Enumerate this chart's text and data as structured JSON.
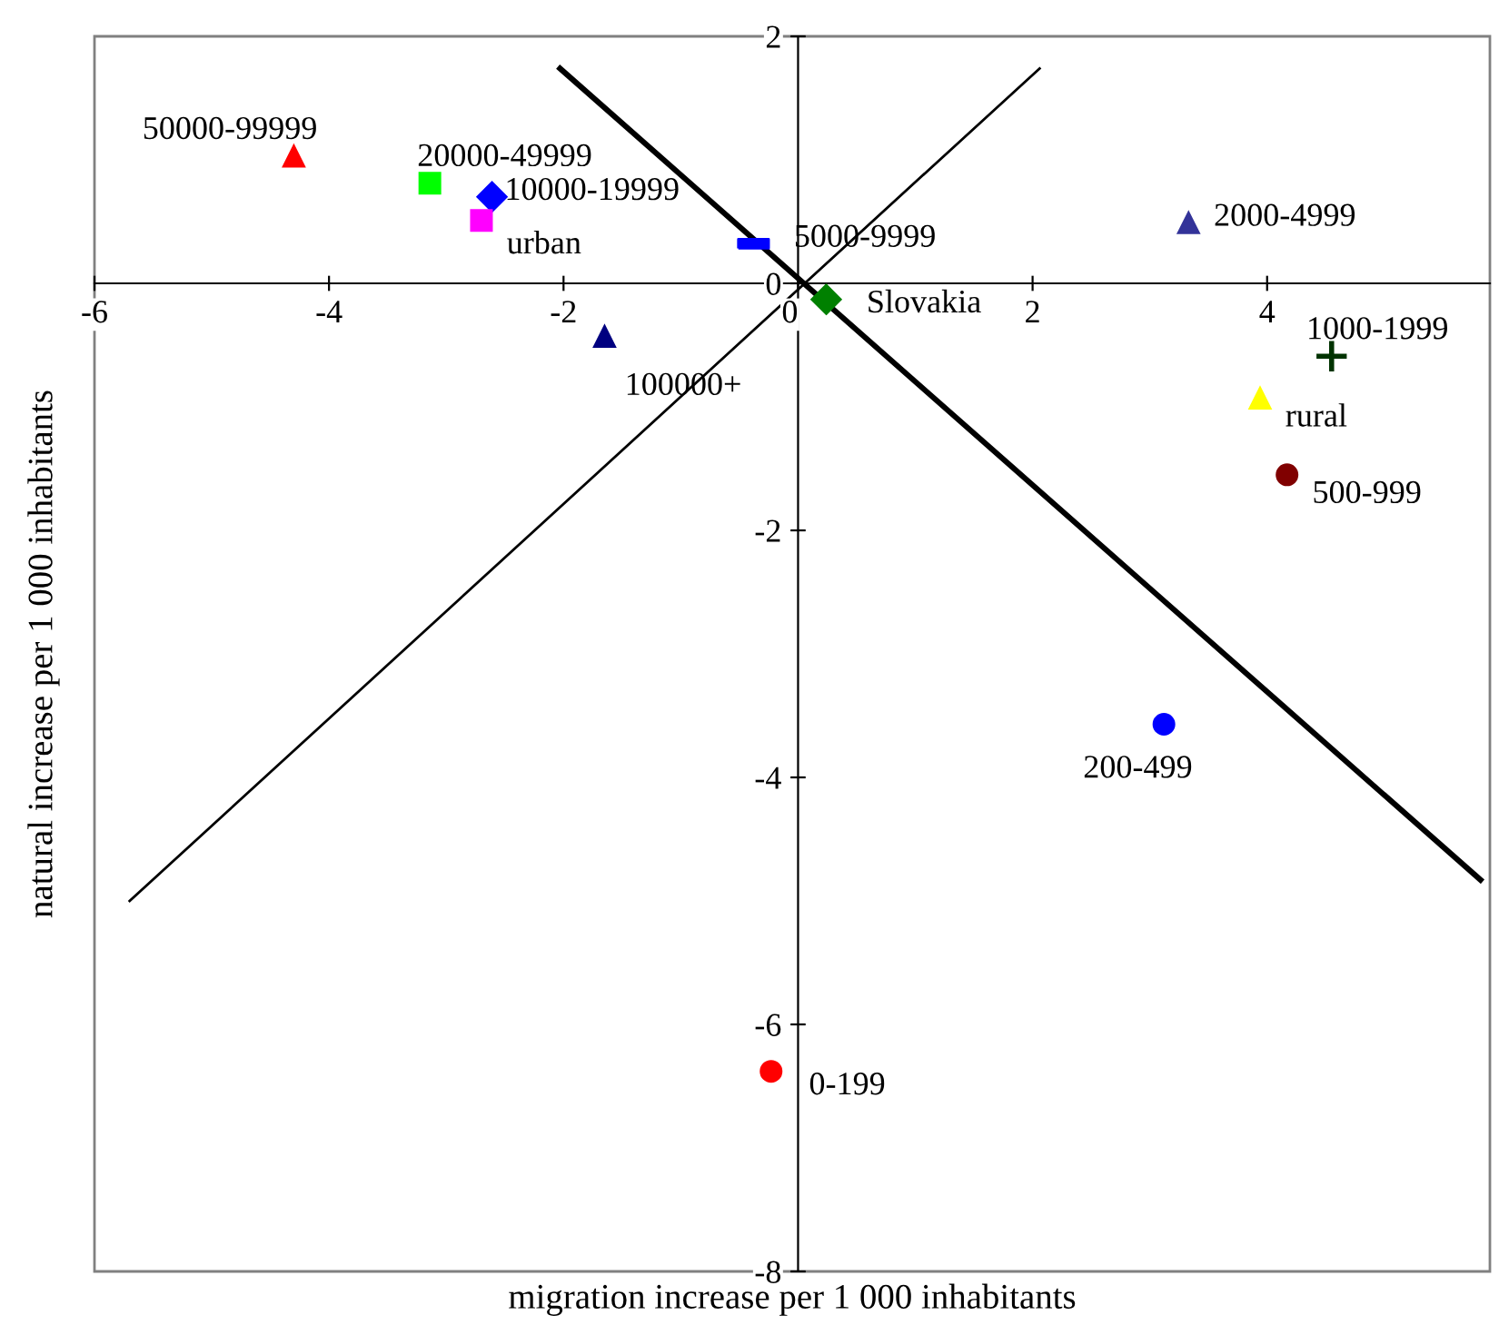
{
  "chart_data": {
    "type": "scatter",
    "xlabel": "migration increase per 1 000 inhabitants",
    "ylabel": "natural increase per 1 000 inhabitants",
    "xlim": [
      -6,
      5.9
    ],
    "ylim": [
      -8,
      2
    ],
    "xticks": [
      -6,
      -4,
      -2,
      0,
      2,
      4
    ],
    "yticks": [
      -8,
      -6,
      -4,
      -2,
      0,
      2
    ],
    "grid": false,
    "legend": false,
    "series": [
      {
        "name": "50000-99999",
        "color": "#ff0000",
        "marker": "triangle",
        "x": [
          -4.3
        ],
        "values": [
          1.03
        ]
      },
      {
        "name": "20000-49999",
        "color": "#00ff00",
        "marker": "square",
        "x": [
          -3.14
        ],
        "values": [
          0.81
        ]
      },
      {
        "name": "10000-19999",
        "color": "#0000ff",
        "marker": "diamond",
        "x": [
          -2.61
        ],
        "values": [
          0.7
        ]
      },
      {
        "name": "urban",
        "color": "#ff00ff",
        "marker": "square",
        "x": [
          -2.7
        ],
        "values": [
          0.51
        ]
      },
      {
        "name": "5000-9999",
        "color": "#0000ff",
        "x": [
          -0.38
        ],
        "values": [
          0.32
        ]
      },
      {
        "name": "2000-4999",
        "color": "#333399",
        "marker": "triangle",
        "x": [
          3.33
        ],
        "values": [
          0.49
        ]
      },
      {
        "name": "100000+",
        "color": "#000080",
        "marker": "triangle",
        "x": [
          -1.65
        ],
        "values": [
          -0.43
        ]
      },
      {
        "name": "Slovakia",
        "color": "#008000",
        "marker": "diamond",
        "x": [
          0.24
        ],
        "values": [
          -0.13
        ]
      },
      {
        "name": "1000-1999",
        "color": "#003300",
        "marker": "cross",
        "x": [
          4.55
        ],
        "values": [
          -0.59
        ]
      },
      {
        "name": "rural",
        "color": "#ffff00",
        "marker": "triangle",
        "x": [
          3.94
        ],
        "values": [
          -0.93
        ]
      },
      {
        "name": "500-999",
        "color": "#800000",
        "marker": "circle",
        "x": [
          4.17
        ],
        "values": [
          -1.55
        ]
      },
      {
        "name": "200-499",
        "color": "#0000ff",
        "marker": "circle",
        "x": [
          3.12
        ],
        "values": [
          -3.57
        ]
      },
      {
        "name": "0-199",
        "color": "#ff0000",
        "marker": "circle",
        "x": [
          -0.23
        ],
        "values": [
          -6.38
        ]
      },
      {
        "type": "line",
        "color": "#000000",
        "marker": "none",
        "line_style": "solid",
        "x": [
          -5.7,
          2.06
        ],
        "values": [
          -5.0,
          1.74
        ]
      },
      {
        "type": "line",
        "color": "#000000",
        "marker": "none",
        "line_style": "solid",
        "x": [
          -2.03,
          5.82
        ],
        "values": [
          1.74,
          -4.83
        ]
      }
    ]
  }
}
